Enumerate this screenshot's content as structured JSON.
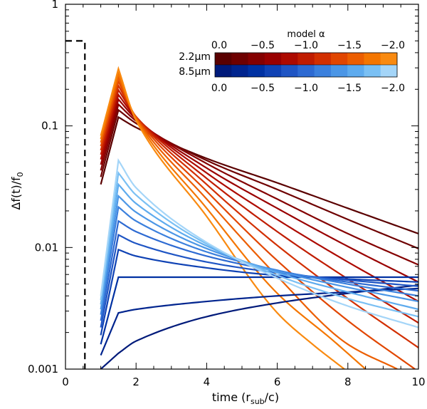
{
  "chart_data": {
    "type": "line",
    "title": "",
    "xlabel": "time (r",
    "xlabel_sub": "sub",
    "xlabel_tail": "/c)",
    "ylabel": "Δf(t)/f",
    "ylabel_sub": "0",
    "xlim": [
      0,
      10
    ],
    "ylim": [
      0.001,
      1
    ],
    "yscale": "log",
    "x_ticks": [
      0,
      2,
      4,
      6,
      8,
      10
    ],
    "x_tick_labels": [
      "0",
      "2",
      "4",
      "6",
      "8",
      "10"
    ],
    "y_ticks": [
      0.001,
      0.01,
      0.1,
      1
    ],
    "y_tick_labels": [
      "0.001",
      "0.01",
      "0.1",
      "1"
    ],
    "legend": {
      "title": "model α",
      "position": "top-right",
      "row1_label": "2.2μm",
      "row2_label": "8.5μm",
      "ticks": [
        "0.0",
        "−0.5",
        "−1.0",
        "−1.5",
        "−2.0"
      ],
      "red_colors": [
        "#5a0000",
        "#6e0000",
        "#840000",
        "#990000",
        "#ad0a00",
        "#c01c00",
        "#d22f00",
        "#e14600",
        "#ec5e00",
        "#f47600",
        "#f98a10"
      ],
      "blue_colors": [
        "#001a7a",
        "#00248e",
        "#0031a2",
        "#0f42b4",
        "#1f55c4",
        "#2d6ad2",
        "#3b80dd",
        "#4b96e6",
        "#5eabee",
        "#7ac0f4",
        "#a4d5f8"
      ]
    },
    "dashed_line": {
      "name": "pulse",
      "x": [
        0,
        0.55,
        0.55
      ],
      "y": [
        0.5,
        0.5,
        0.001
      ]
    },
    "series_red": [
      {
        "name": "2.2μm α=0.0",
        "alpha": 0.0,
        "color": "#5a0000",
        "x": [
          1.0,
          1.5,
          2.0,
          4.0,
          6.0,
          8.0,
          10.0
        ],
        "y": [
          0.033,
          0.118,
          0.097,
          0.054,
          0.034,
          0.021,
          0.013
        ]
      },
      {
        "name": "2.2μm α=-0.2",
        "alpha": -0.2,
        "color": "#6e0000",
        "x": [
          1.0,
          1.5,
          2.0,
          4.0,
          6.0,
          8.0,
          10.0
        ],
        "y": [
          0.038,
          0.135,
          0.105,
          0.052,
          0.03,
          0.017,
          0.0098
        ]
      },
      {
        "name": "2.2μm α=-0.4",
        "alpha": -0.4,
        "color": "#840000",
        "x": [
          1.0,
          1.5,
          2.0,
          4.0,
          6.0,
          8.0,
          10.0
        ],
        "y": [
          0.043,
          0.15,
          0.11,
          0.049,
          0.025,
          0.013,
          0.0072
        ]
      },
      {
        "name": "2.2μm α=-0.6",
        "alpha": -0.6,
        "color": "#990000",
        "x": [
          1.0,
          1.5,
          2.0,
          4.0,
          6.0,
          8.0,
          10.0
        ],
        "y": [
          0.048,
          0.165,
          0.114,
          0.045,
          0.021,
          0.0102,
          0.0052
        ]
      },
      {
        "name": "2.2μm α=-0.8",
        "alpha": -0.8,
        "color": "#ad0a00",
        "x": [
          1.0,
          1.5,
          2.0,
          4.0,
          6.0,
          8.0,
          10.0
        ],
        "y": [
          0.053,
          0.18,
          0.117,
          0.041,
          0.017,
          0.0076,
          0.0036
        ]
      },
      {
        "name": "2.2μm α=-1.0",
        "alpha": -1.0,
        "color": "#c01c00",
        "x": [
          1.0,
          1.5,
          2.0,
          4.0,
          6.0,
          8.0,
          10.0
        ],
        "y": [
          0.058,
          0.197,
          0.119,
          0.037,
          0.0135,
          0.0055,
          0.0024
        ]
      },
      {
        "name": "2.2μm α=-1.2",
        "alpha": -1.2,
        "color": "#d22f00",
        "x": [
          1.0,
          1.5,
          2.0,
          4.0,
          6.0,
          8.0,
          10.0
        ],
        "y": [
          0.063,
          0.214,
          0.119,
          0.033,
          0.0104,
          0.0038,
          0.0015
        ]
      },
      {
        "name": "2.2μm α=-1.4",
        "alpha": -1.4,
        "color": "#e14600",
        "x": [
          1.0,
          1.5,
          2.0,
          4.0,
          6.0,
          8.0,
          9.9
        ],
        "y": [
          0.068,
          0.232,
          0.118,
          0.029,
          0.0078,
          0.0025,
          0.001
        ]
      },
      {
        "name": "2.2μm α=-1.6",
        "alpha": -1.6,
        "color": "#ec5e00",
        "x": [
          1.0,
          1.5,
          2.0,
          4.0,
          6.0,
          8.0,
          9.4
        ],
        "y": [
          0.073,
          0.25,
          0.116,
          0.025,
          0.0058,
          0.0016,
          0.001
        ]
      },
      {
        "name": "2.2μm α=-1.8",
        "alpha": -1.8,
        "color": "#f47600",
        "x": [
          1.0,
          1.5,
          2.0,
          4.0,
          6.0,
          7.6,
          8.5
        ],
        "y": [
          0.078,
          0.27,
          0.114,
          0.021,
          0.0042,
          0.0017,
          0.001
        ]
      },
      {
        "name": "2.2μm α=-2.0",
        "alpha": -2.0,
        "color": "#f98a10",
        "x": [
          1.0,
          1.5,
          2.0,
          4.0,
          6.0,
          7.0,
          7.9
        ],
        "y": [
          0.083,
          0.295,
          0.111,
          0.018,
          0.0029,
          0.0016,
          0.001
        ]
      }
    ],
    "series_blue": [
      {
        "name": "8.5μm α=0.0",
        "alpha": 0.0,
        "color": "#001a7a",
        "x": [
          1.0,
          1.5,
          2.0,
          4.0,
          6.0,
          8.0,
          10.0
        ],
        "y": [
          0.001,
          0.00135,
          0.0017,
          0.0027,
          0.0035,
          0.0042,
          0.0049
        ]
      },
      {
        "name": "8.5μm α=-0.2",
        "alpha": -0.2,
        "color": "#00248e",
        "x": [
          1.0,
          1.5,
          2.0,
          4.0,
          6.0,
          8.0,
          10.0
        ],
        "y": [
          0.0013,
          0.0029,
          0.0031,
          0.0036,
          0.004,
          0.0043,
          0.0046
        ]
      },
      {
        "name": "8.5μm α=-0.4",
        "alpha": -0.4,
        "color": "#0031a2",
        "x": [
          1.0,
          1.5,
          2.0,
          4.0,
          6.0,
          8.0,
          10.0
        ],
        "y": [
          0.0016,
          0.0057,
          0.0057,
          0.0057,
          0.0057,
          0.0057,
          0.0057
        ]
      },
      {
        "name": "8.5μm α=-0.6",
        "alpha": -0.6,
        "color": "#0f42b4",
        "x": [
          1.0,
          1.5,
          2.0,
          4.0,
          6.0,
          8.0,
          10.0
        ],
        "y": [
          0.0019,
          0.0096,
          0.0085,
          0.0068,
          0.0059,
          0.0055,
          0.0052
        ]
      },
      {
        "name": "8.5μm α=-0.8",
        "alpha": -0.8,
        "color": "#1f55c4",
        "x": [
          1.0,
          1.5,
          2.0,
          4.0,
          6.0,
          8.0,
          10.0
        ],
        "y": [
          0.0022,
          0.0127,
          0.0108,
          0.0076,
          0.0062,
          0.0054,
          0.0048
        ]
      },
      {
        "name": "8.5μm α=-1.0",
        "alpha": -1.0,
        "color": "#2d6ad2",
        "x": [
          1.0,
          1.5,
          2.0,
          4.0,
          6.0,
          8.0,
          10.0
        ],
        "y": [
          0.0025,
          0.0165,
          0.0135,
          0.0085,
          0.0064,
          0.0052,
          0.0044
        ]
      },
      {
        "name": "8.5μm α=-1.2",
        "alpha": -1.2,
        "color": "#3b80dd",
        "x": [
          1.0,
          1.5,
          2.0,
          4.0,
          6.0,
          8.0,
          10.0
        ],
        "y": [
          0.0028,
          0.0215,
          0.0165,
          0.0092,
          0.0065,
          0.005,
          0.004
        ]
      },
      {
        "name": "8.5μm α=-1.4",
        "alpha": -1.4,
        "color": "#4b96e6",
        "x": [
          1.0,
          1.5,
          2.0,
          4.0,
          6.0,
          8.0,
          10.0
        ],
        "y": [
          0.0031,
          0.0265,
          0.0195,
          0.0098,
          0.0064,
          0.0047,
          0.0036
        ]
      },
      {
        "name": "8.5μm α=-1.6",
        "alpha": -1.6,
        "color": "#5eabee",
        "x": [
          1.0,
          1.5,
          2.0,
          4.0,
          6.0,
          8.0,
          10.0
        ],
        "y": [
          0.0034,
          0.033,
          0.023,
          0.0103,
          0.0062,
          0.0043,
          0.0031
        ]
      },
      {
        "name": "8.5μm α=-1.8",
        "alpha": -1.8,
        "color": "#7ac0f4",
        "x": [
          1.0,
          1.5,
          2.0,
          4.0,
          6.0,
          8.0,
          10.0
        ],
        "y": [
          0.0037,
          0.041,
          0.027,
          0.0107,
          0.0059,
          0.0038,
          0.0027
        ]
      },
      {
        "name": "8.5μm α=-2.0",
        "alpha": -2.0,
        "color": "#a4d5f8",
        "x": [
          1.0,
          1.5,
          2.0,
          4.0,
          6.0,
          8.0,
          10.0
        ],
        "y": [
          0.004,
          0.052,
          0.031,
          0.011,
          0.0056,
          0.0033,
          0.0022
        ]
      }
    ]
  }
}
